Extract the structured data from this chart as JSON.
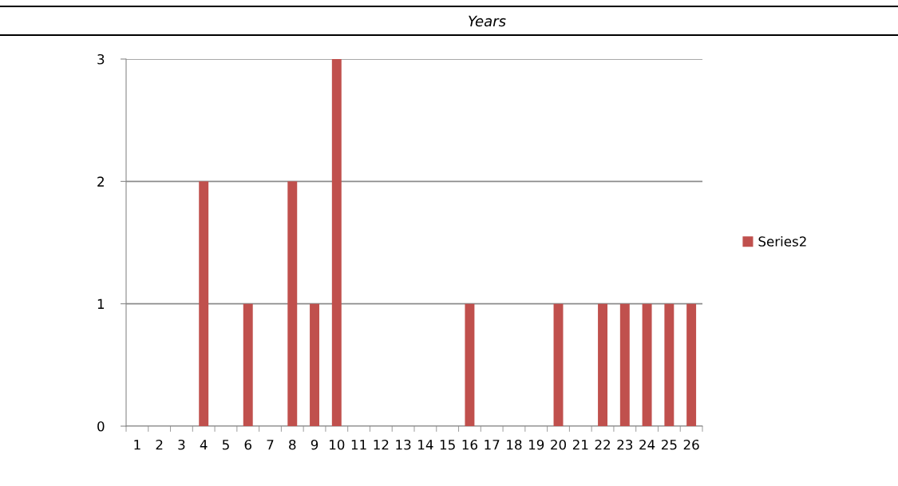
{
  "chart_data": {
    "type": "bar",
    "title": "Years",
    "categories": [
      "1",
      "2",
      "3",
      "4",
      "5",
      "6",
      "7",
      "8",
      "9",
      "10",
      "11",
      "12",
      "13",
      "14",
      "15",
      "16",
      "17",
      "18",
      "19",
      "20",
      "21",
      "22",
      "23",
      "24",
      "25",
      "26"
    ],
    "series": [
      {
        "name": "Series2",
        "color": "#c0504d",
        "values": [
          0,
          0,
          0,
          2,
          0,
          1,
          0,
          2,
          1,
          3,
          0,
          0,
          0,
          0,
          0,
          1,
          0,
          0,
          0,
          1,
          0,
          1,
          1,
          1,
          1,
          1
        ]
      }
    ],
    "ylim": [
      0,
      3
    ],
    "yticks": [
      0,
      1,
      2,
      3
    ],
    "grid": "y",
    "legend": "right"
  }
}
